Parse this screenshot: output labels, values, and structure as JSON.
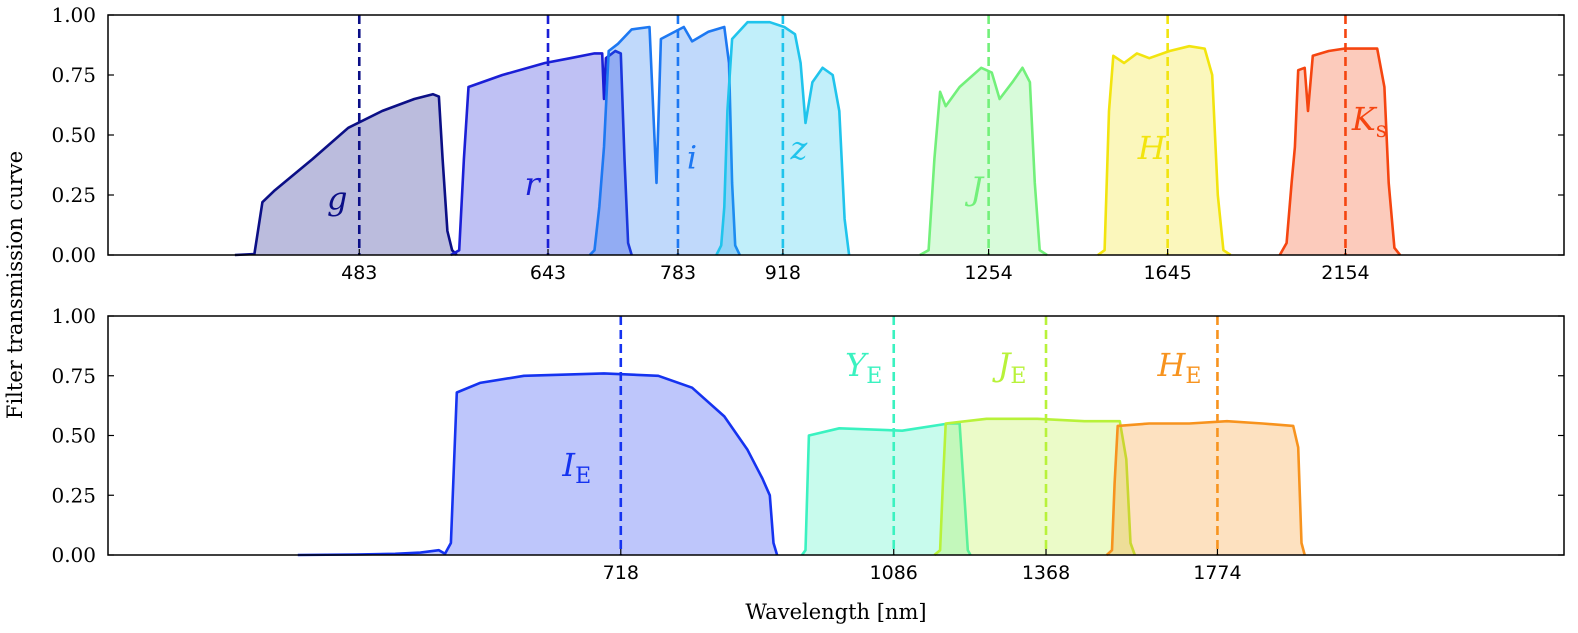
{
  "chart_data": [
    {
      "type": "area",
      "title": "",
      "ylabel": "Filter transmission curve",
      "ylim": [
        0,
        1
      ],
      "yticks": [
        "0.00",
        "0.25",
        "0.50",
        "0.75",
        "1.00"
      ],
      "xscale": "log",
      "xlim_nm": [
        330,
        3000
      ],
      "grid": false,
      "series": [
        {
          "name": "g",
          "label": "g",
          "sub": "",
          "color": "#0b0f86",
          "center_nm": 483,
          "center_label": "483",
          "curve": [
            [
              400,
              0
            ],
            [
              412,
              0.004
            ],
            [
              417,
              0.22
            ],
            [
              425,
              0.27
            ],
            [
              450,
              0.4
            ],
            [
              475,
              0.53
            ],
            [
              500,
              0.6
            ],
            [
              525,
              0.65
            ],
            [
              540,
              0.67
            ],
            [
              545,
              0.66
            ],
            [
              548,
              0.4
            ],
            [
              552,
              0.1
            ],
            [
              556,
              0.02
            ],
            [
              560,
              0
            ]
          ]
        },
        {
          "name": "r",
          "label": "r",
          "sub": "",
          "color": "#1a1fd6",
          "center_nm": 643,
          "center_label": "643",
          "curve": [
            [
              555,
              0
            ],
            [
              562,
              0.02
            ],
            [
              566,
              0.4
            ],
            [
              570,
              0.7
            ],
            [
              600,
              0.75
            ],
            [
              640,
              0.8
            ],
            [
              665,
              0.82
            ],
            [
              690,
              0.84
            ],
            [
              698,
              0.84
            ],
            [
              700,
              0.65
            ],
            [
              702,
              0.82
            ],
            [
              712,
              0.85
            ],
            [
              718,
              0.84
            ],
            [
              722,
              0.4
            ],
            [
              726,
              0.05
            ],
            [
              730,
              0
            ]
          ]
        },
        {
          "name": "i",
          "label": "i",
          "sub": "",
          "color": "#1d78f2",
          "center_nm": 783,
          "center_label": "783",
          "curve": [
            [
              685,
              0
            ],
            [
              690,
              0.02
            ],
            [
              695,
              0.2
            ],
            [
              700,
              0.45
            ],
            [
              705,
              0.85
            ],
            [
              715,
              0.88
            ],
            [
              730,
              0.94
            ],
            [
              750,
              0.95
            ],
            [
              758,
              0.3
            ],
            [
              763,
              0.9
            ],
            [
              790,
              0.95
            ],
            [
              800,
              0.89
            ],
            [
              820,
              0.93
            ],
            [
              840,
              0.95
            ],
            [
              846,
              0.8
            ],
            [
              850,
              0.3
            ],
            [
              854,
              0.04
            ],
            [
              860,
              0
            ]
          ]
        },
        {
          "name": "z",
          "label": "z",
          "sub": "",
          "color": "#20c4ec",
          "center_nm": 918,
          "center_label": "918",
          "curve": [
            [
              830,
              0
            ],
            [
              836,
              0.04
            ],
            [
              840,
              0.2
            ],
            [
              844,
              0.6
            ],
            [
              850,
              0.9
            ],
            [
              870,
              0.97
            ],
            [
              900,
              0.97
            ],
            [
              920,
              0.95
            ],
            [
              935,
              0.92
            ],
            [
              943,
              0.8
            ],
            [
              950,
              0.55
            ],
            [
              960,
              0.72
            ],
            [
              975,
              0.78
            ],
            [
              990,
              0.75
            ],
            [
              1000,
              0.6
            ],
            [
              1008,
              0.15
            ],
            [
              1015,
              0
            ]
          ]
        },
        {
          "name": "J",
          "label": "J",
          "sub": "",
          "color": "#72f07a",
          "center_nm": 1254,
          "center_label": "1254",
          "curve": [
            [
              1130,
              0
            ],
            [
              1145,
              0.02
            ],
            [
              1155,
              0.4
            ],
            [
              1165,
              0.68
            ],
            [
              1175,
              0.62
            ],
            [
              1200,
              0.7
            ],
            [
              1240,
              0.78
            ],
            [
              1260,
              0.76
            ],
            [
              1275,
              0.65
            ],
            [
              1300,
              0.72
            ],
            [
              1320,
              0.78
            ],
            [
              1335,
              0.72
            ],
            [
              1345,
              0.3
            ],
            [
              1355,
              0.02
            ],
            [
              1370,
              0
            ]
          ]
        },
        {
          "name": "H",
          "label": "H",
          "sub": "",
          "color": "#f2e40e",
          "center_nm": 1645,
          "center_label": "1645",
          "curve": [
            [
              1480,
              0
            ],
            [
              1495,
              0.02
            ],
            [
              1505,
              0.6
            ],
            [
              1515,
              0.83
            ],
            [
              1540,
              0.8
            ],
            [
              1570,
              0.84
            ],
            [
              1600,
              0.82
            ],
            [
              1650,
              0.85
            ],
            [
              1700,
              0.87
            ],
            [
              1740,
              0.86
            ],
            [
              1760,
              0.75
            ],
            [
              1775,
              0.25
            ],
            [
              1790,
              0.02
            ],
            [
              1810,
              0
            ]
          ]
        },
        {
          "name": "Ks",
          "label": "K",
          "sub": "s",
          "color": "#f54510",
          "center_nm": 2154,
          "center_label": "2154",
          "curve": [
            [
              1950,
              0
            ],
            [
              1970,
              0.05
            ],
            [
              1985,
              0.3
            ],
            [
              1995,
              0.45
            ],
            [
              2005,
              0.77
            ],
            [
              2025,
              0.78
            ],
            [
              2035,
              0.6
            ],
            [
              2050,
              0.83
            ],
            [
              2100,
              0.85
            ],
            [
              2150,
              0.86
            ],
            [
              2200,
              0.86
            ],
            [
              2260,
              0.86
            ],
            [
              2285,
              0.7
            ],
            [
              2300,
              0.3
            ],
            [
              2320,
              0.03
            ],
            [
              2340,
              0
            ]
          ]
        }
      ]
    },
    {
      "type": "area",
      "title": "",
      "xlabel": "Wavelength [nm]",
      "ylim": [
        0,
        1
      ],
      "yticks": [
        "0.00",
        "0.25",
        "0.50",
        "0.75",
        "1.00"
      ],
      "xscale": "log",
      "xlim_nm": [
        330,
        3000
      ],
      "grid": false,
      "series": [
        {
          "name": "IE",
          "label": "I",
          "sub": "E",
          "color": "#1533f0",
          "center_nm": 718,
          "center_label": "718",
          "curve": [
            [
              440,
              0
            ],
            [
              480,
              0.002
            ],
            [
              510,
              0.005
            ],
            [
              530,
              0.01
            ],
            [
              545,
              0.02
            ],
            [
              550,
              0.005
            ],
            [
              555,
              0.05
            ],
            [
              560,
              0.68
            ],
            [
              580,
              0.72
            ],
            [
              620,
              0.75
            ],
            [
              700,
              0.76
            ],
            [
              760,
              0.75
            ],
            [
              800,
              0.7
            ],
            [
              840,
              0.58
            ],
            [
              870,
              0.44
            ],
            [
              890,
              0.32
            ],
            [
              900,
              0.25
            ],
            [
              905,
              0.05
            ],
            [
              910,
              0
            ]
          ]
        },
        {
          "name": "YE",
          "label": "Y",
          "sub": "E",
          "color": "#3af2c0",
          "center_nm": 1086,
          "center_label": "1086",
          "curve": [
            [
              945,
              0
            ],
            [
              950,
              0.02
            ],
            [
              955,
              0.5
            ],
            [
              1000,
              0.53
            ],
            [
              1100,
              0.52
            ],
            [
              1180,
              0.55
            ],
            [
              1200,
              0.55
            ],
            [
              1210,
              0.2
            ],
            [
              1215,
              0.02
            ],
            [
              1220,
              0
            ]
          ]
        },
        {
          "name": "JE",
          "label": "J",
          "sub": "E",
          "color": "#b8f23a",
          "center_nm": 1368,
          "center_label": "1368",
          "curve": [
            [
              1155,
              0
            ],
            [
              1165,
              0.02
            ],
            [
              1170,
              0.3
            ],
            [
              1175,
              0.55
            ],
            [
              1250,
              0.57
            ],
            [
              1350,
              0.57
            ],
            [
              1450,
              0.56
            ],
            [
              1530,
              0.56
            ],
            [
              1545,
              0.4
            ],
            [
              1555,
              0.05
            ],
            [
              1565,
              0
            ]
          ]
        },
        {
          "name": "HE",
          "label": "H",
          "sub": "E",
          "color": "#f7931e",
          "center_nm": 1774,
          "center_label": "1774",
          "curve": [
            [
              1500,
              0
            ],
            [
              1512,
              0.02
            ],
            [
              1518,
              0.3
            ],
            [
              1525,
              0.54
            ],
            [
              1600,
              0.55
            ],
            [
              1700,
              0.55
            ],
            [
              1800,
              0.56
            ],
            [
              1900,
              0.55
            ],
            [
              1990,
              0.54
            ],
            [
              2005,
              0.45
            ],
            [
              2015,
              0.05
            ],
            [
              2025,
              0
            ]
          ]
        }
      ]
    }
  ]
}
